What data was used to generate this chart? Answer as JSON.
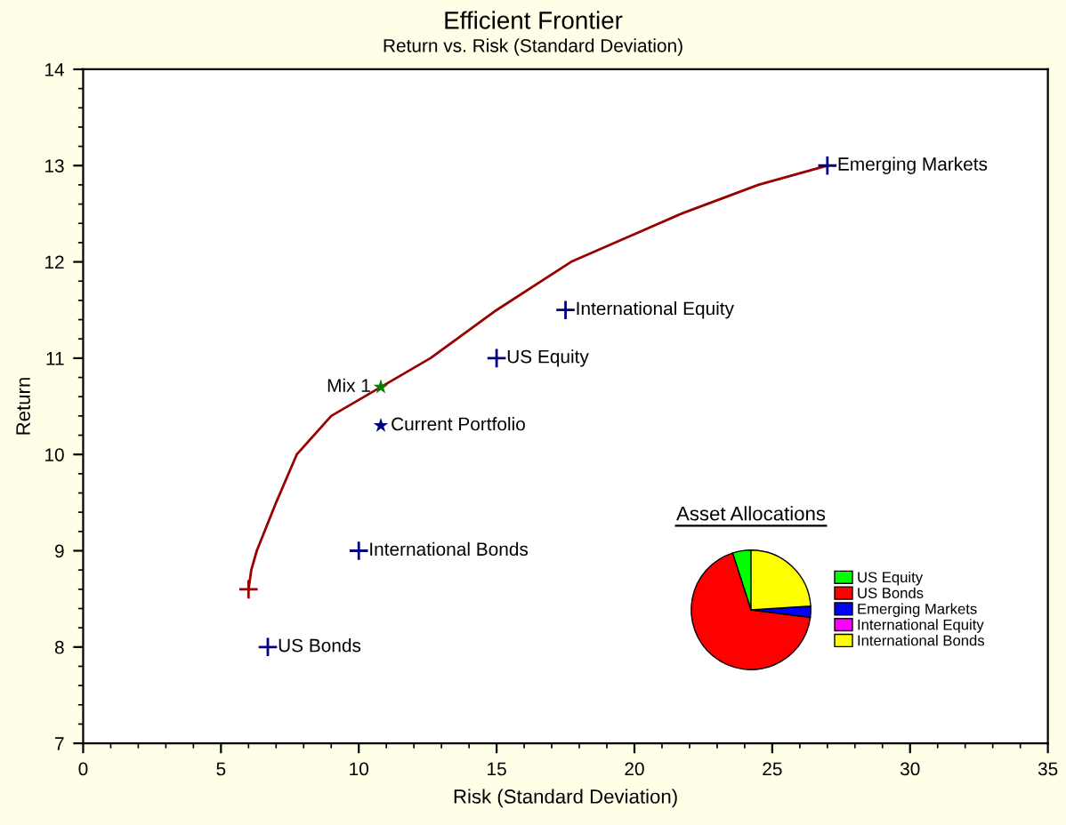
{
  "chart_data": [
    {
      "type": "scatter",
      "title": "Efficient Frontier",
      "subtitle": "Return vs. Risk (Standard Deviation)",
      "xlabel": "Risk (Standard Deviation)",
      "ylabel": "Return",
      "xlim": [
        0,
        35
      ],
      "ylim": [
        7,
        14
      ],
      "xticks": [
        0,
        5,
        10,
        15,
        20,
        25,
        30,
        35
      ],
      "yticks": [
        7,
        8,
        9,
        10,
        11,
        12,
        13,
        14
      ],
      "grid": false,
      "legend": false,
      "series": [
        {
          "type": "line",
          "color": "#990000",
          "marker": "none",
          "x": [
            6,
            6.1,
            6.3,
            7.0,
            7.75,
            9.0,
            10.8,
            12.6,
            15.0,
            17.7,
            21.7,
            24.5,
            27
          ],
          "values": [
            8.6,
            8.8,
            9.0,
            9.5,
            10.0,
            10.4,
            10.7,
            11.0,
            11.5,
            12.0,
            12.5,
            12.8,
            13.0
          ]
        },
        {
          "color": "#990000",
          "marker": "cross",
          "x": [
            6
          ],
          "values": [
            8.6
          ]
        },
        {
          "name": "Emerging Markets",
          "color": "#000080",
          "marker": "cross",
          "x": [
            27
          ],
          "values": [
            13
          ]
        },
        {
          "name": "International Equity",
          "color": "#000080",
          "marker": "cross",
          "x": [
            17.5
          ],
          "values": [
            11.5
          ]
        },
        {
          "name": "US Equity",
          "color": "#000080",
          "marker": "cross",
          "x": [
            15
          ],
          "values": [
            11
          ]
        },
        {
          "name": "Mix 1",
          "color": "#008000",
          "marker": "star",
          "x": [
            10.8
          ],
          "values": [
            10.7
          ]
        },
        {
          "name": "Current Portfolio",
          "color": "#000080",
          "marker": "star",
          "x": [
            10.8
          ],
          "values": [
            10.3
          ]
        },
        {
          "name": "International Bonds",
          "color": "#000080",
          "marker": "cross",
          "x": [
            10
          ],
          "values": [
            9
          ]
        },
        {
          "name": "US Bonds",
          "color": "#000080",
          "marker": "cross",
          "x": [
            6.7
          ],
          "values": [
            8
          ]
        }
      ]
    },
    {
      "type": "pie",
      "title": "Asset Allocations",
      "legend": "right",
      "categories": [
        "US Equity",
        "US Bonds",
        "Emerging Markets",
        "International Equity",
        "International Bonds"
      ],
      "values": [
        5,
        68,
        3,
        0,
        24
      ],
      "colors": [
        "#00ff00",
        "#ff0000",
        "#0000ff",
        "#ff00ff",
        "#ffff00"
      ]
    }
  ]
}
